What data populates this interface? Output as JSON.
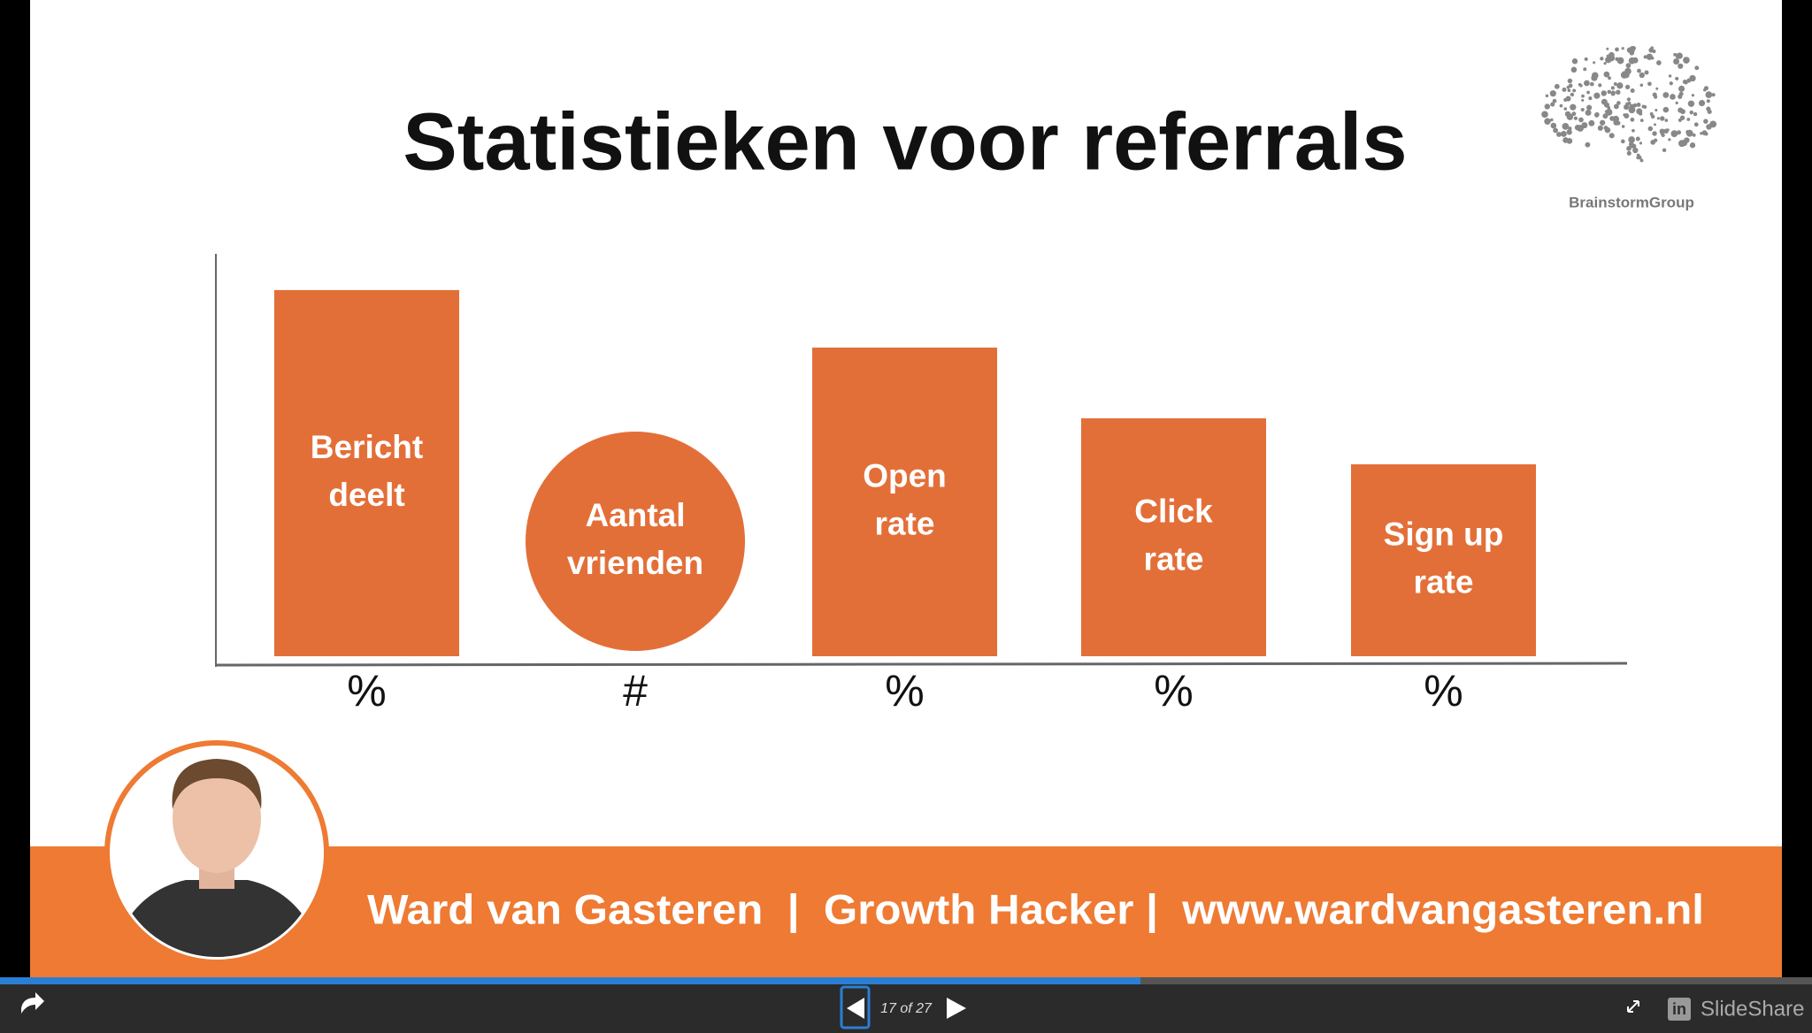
{
  "slide": {
    "title": "Statistieken voor referrals",
    "logo_text": "BrainstormGroup",
    "items": [
      {
        "label": [
          "Bericht",
          "deelt"
        ],
        "unit": "%"
      },
      {
        "label": [
          "Aantal",
          "vrienden"
        ],
        "unit": "#"
      },
      {
        "label": [
          "Open",
          "rate"
        ],
        "unit": "%"
      },
      {
        "label": [
          "Click",
          "rate"
        ],
        "unit": "%"
      },
      {
        "label": [
          "Sign up",
          "rate"
        ],
        "unit": "%"
      }
    ],
    "footer": "Ward van Gasteren  |  Growth Hacker |  www.wardvangasteren.nl"
  },
  "player": {
    "page": "17 of 27",
    "brand_icon": "in",
    "brand": "SlideShare"
  }
}
